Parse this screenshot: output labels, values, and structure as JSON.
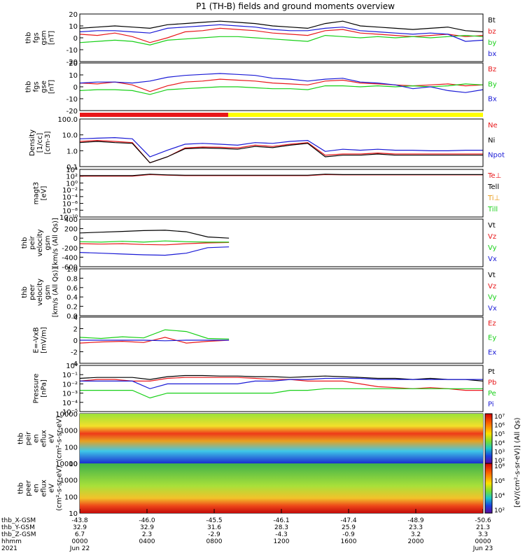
{
  "title": "P1 (TH-B) fields and ground moments overview",
  "chart_data": [
    {
      "type": "line",
      "ylabel": [
        "thb",
        "fgs",
        "gsm",
        "[nT]"
      ],
      "ylim": [
        -20,
        20
      ],
      "yticks": [
        "20",
        "10",
        "0",
        "-10",
        "-20"
      ],
      "series": [
        {
          "name": "Bt",
          "color": "#000000",
          "values": [
            8,
            9,
            10,
            9,
            8,
            11,
            12,
            13,
            14,
            13,
            12,
            10,
            9,
            8,
            12,
            14,
            10,
            9,
            8,
            7,
            8,
            9,
            6,
            5
          ]
        },
        {
          "name": "bz",
          "color": "#e8171a",
          "values": [
            3,
            2,
            4,
            1,
            -4,
            0,
            5,
            6,
            8,
            7,
            6,
            4,
            3,
            2,
            6,
            7,
            4,
            3,
            2,
            1,
            2,
            3,
            1,
            2
          ]
        },
        {
          "name": "by",
          "color": "#18d018",
          "values": [
            -4,
            -3,
            -2,
            -3,
            -6,
            -2,
            -1,
            0,
            1,
            1,
            0,
            -1,
            -2,
            -3,
            2,
            1,
            0,
            1,
            0,
            1,
            0,
            1,
            2,
            1
          ]
        },
        {
          "name": "bx",
          "color": "#1a1ad6",
          "values": [
            5,
            6,
            6,
            5,
            4,
            8,
            9,
            10,
            11,
            10,
            9,
            7,
            6,
            6,
            8,
            9,
            6,
            5,
            4,
            3,
            4,
            3,
            -3,
            -2
          ]
        }
      ]
    },
    {
      "type": "line",
      "ylabel": [
        "thb",
        "fgs",
        "gse",
        "[nT]"
      ],
      "ylim": [
        -25,
        25
      ],
      "yticks": [
        "20",
        "10",
        "0",
        "-10",
        "-20"
      ],
      "series": [
        {
          "name": "Bz",
          "color": "#e8171a",
          "values": [
            4,
            3,
            5,
            2,
            -5,
            1,
            5,
            6,
            8,
            7,
            6,
            4,
            3,
            2,
            6,
            7,
            4,
            3,
            2,
            1,
            2,
            3,
            1,
            2
          ]
        },
        {
          "name": "By",
          "color": "#18d018",
          "values": [
            -4,
            -3,
            -3,
            -4,
            -8,
            -3,
            -2,
            -1,
            0,
            0,
            -1,
            -2,
            -2,
            -3,
            1,
            1,
            0,
            1,
            0,
            1,
            0,
            1,
            3,
            2
          ]
        },
        {
          "name": "Bx",
          "color": "#1a1ad6",
          "values": [
            4,
            5,
            5,
            4,
            6,
            10,
            12,
            13,
            14,
            13,
            12,
            9,
            8,
            6,
            8,
            9,
            5,
            4,
            2,
            -2,
            0,
            -4,
            -6,
            -3
          ]
        }
      ]
    },
    {
      "type": "line",
      "ylabel": [
        "Density",
        "[1/cc]",
        "[cm-3]"
      ],
      "yscale": "log",
      "ylim": [
        0.05,
        300
      ],
      "yticks": [
        "100.0",
        "10.0",
        "1.0",
        "0.1"
      ],
      "series": [
        {
          "name": "Ne",
          "color": "#e8171a",
          "values": [
            5,
            6,
            5,
            4,
            0.1,
            0.3,
            1.5,
            1.8,
            1.7,
            1.5,
            2.5,
            2.0,
            3.0,
            4.0,
            0.4,
            0.5,
            0.5,
            0.6,
            0.5,
            0.5,
            0.5,
            0.5,
            0.5,
            0.5
          ]
        },
        {
          "name": "Ni",
          "color": "#000000",
          "values": [
            4,
            5,
            4,
            3.5,
            0.1,
            0.3,
            1.3,
            1.5,
            1.4,
            1.2,
            2.0,
            1.6,
            2.5,
            3.5,
            0.3,
            0.4,
            0.4,
            0.5,
            0.4,
            0.4,
            0.4,
            0.4,
            0.4,
            0.4
          ]
        },
        {
          "name": "Npot",
          "color": "#1a1ad6",
          "values": [
            8,
            9,
            10,
            8,
            0.3,
            1.0,
            3.0,
            3.5,
            3.0,
            2.5,
            4.0,
            3.5,
            5.0,
            6.0,
            0.8,
            1.2,
            1.0,
            1.2,
            1.0,
            1.0,
            0.9,
            0.9,
            1.0,
            1.0
          ]
        }
      ]
    },
    {
      "type": "line",
      "ylabel": [
        "magt3",
        "[eV]"
      ],
      "yscale": "log",
      "ylim": [
        1e-10,
        10000.0
      ],
      "yticks": [
        "10⁴",
        "10²",
        "10⁰",
        "10⁻²",
        "10⁻⁴",
        "10⁻⁶",
        "10⁻⁸",
        "10⁻¹⁰"
      ],
      "series": [
        {
          "name": "Te⊥",
          "color": "#e8171a",
          "values": [
            100,
            100,
            100,
            100,
            300,
            200,
            150,
            150,
            150,
            150,
            150,
            150,
            150,
            150,
            300,
            250,
            250,
            250,
            250,
            250,
            250,
            250,
            250,
            250
          ]
        },
        {
          "name": "Tell",
          "color": "#000000",
          "values": [
            150,
            150,
            150,
            150,
            400,
            250,
            200,
            200,
            200,
            200,
            200,
            200,
            200,
            200,
            400,
            300,
            300,
            300,
            300,
            300,
            300,
            300,
            300,
            300
          ]
        },
        {
          "name": "Ti⊥",
          "color": "#e89a18",
          "values": []
        },
        {
          "name": "Till",
          "color": "#18d018",
          "values": []
        }
      ]
    },
    {
      "type": "line",
      "ylabel": [
        "thb",
        "peir",
        "velocity",
        "gsm",
        "[km/s (All Qs)]"
      ],
      "ylim": [
        -600,
        600
      ],
      "yticks": [
        "400",
        "200",
        "0",
        "-200",
        "-400",
        "-600"
      ],
      "series": [
        {
          "name": "Vt",
          "color": "#000000",
          "values": [
            250,
            270,
            290,
            310,
            320,
            280,
            150,
            120
          ]
        },
        {
          "name": "Vz",
          "color": "#e8171a",
          "values": [
            -20,
            -30,
            -20,
            -40,
            -50,
            -20,
            0,
            10
          ]
        },
        {
          "name": "Vy",
          "color": "#18d018",
          "values": [
            30,
            20,
            40,
            20,
            50,
            30,
            20,
            20
          ]
        },
        {
          "name": "Vx",
          "color": "#1a1ad6",
          "values": [
            -240,
            -260,
            -280,
            -300,
            -310,
            -260,
            -120,
            -100
          ]
        }
      ]
    },
    {
      "type": "line",
      "ylabel": [
        "thb",
        "peer",
        "velocity",
        "gsm",
        "[km/s (All Qs)]"
      ],
      "ylim": [
        0,
        1
      ],
      "yticks": [
        "1.0",
        "0.8",
        "0.6",
        "0.4",
        "0.2",
        "0.0"
      ],
      "series": [
        {
          "name": "Vt",
          "color": "#000000",
          "values": []
        },
        {
          "name": "Vz",
          "color": "#e8171a",
          "values": []
        },
        {
          "name": "Vy",
          "color": "#18d018",
          "values": []
        },
        {
          "name": "Vx",
          "color": "#1a1ad6",
          "values": []
        }
      ]
    },
    {
      "type": "line",
      "ylabel": [
        "E=-VxB",
        "[mV/m]"
      ],
      "ylim": [
        -4,
        4
      ],
      "yticks": [
        "4",
        "2",
        "0",
        "-2",
        "-4"
      ],
      "series": [
        {
          "name": "Ez",
          "color": "#e8171a",
          "values": [
            -0.5,
            -0.3,
            -0.2,
            -0.4,
            0.5,
            -0.5,
            -0.2,
            0.0
          ]
        },
        {
          "name": "Ey",
          "color": "#18d018",
          "values": [
            0.5,
            0.3,
            0.6,
            0.4,
            1.8,
            1.5,
            0.3,
            0.2
          ]
        },
        {
          "name": "Ex",
          "color": "#1a1ad6",
          "values": [
            0.0,
            0.0,
            0.0,
            0.0,
            -0.1,
            0.0,
            0.0,
            0.0
          ]
        }
      ]
    },
    {
      "type": "line",
      "ylabel": [
        "Pressure",
        "[nPa]"
      ],
      "yscale": "log",
      "ylim": [
        1e-05,
        1
      ],
      "yticks": [
        "10⁰",
        "10⁻¹",
        "10⁻²",
        "10⁻³",
        "10⁻⁴",
        "10⁻⁵"
      ],
      "series": [
        {
          "name": "Pt",
          "color": "#000000",
          "values": [
            0.04,
            0.05,
            0.05,
            0.05,
            0.03,
            0.06,
            0.08,
            0.08,
            0.07,
            0.07,
            0.06,
            0.06,
            0.05,
            0.06,
            0.07,
            0.06,
            0.05,
            0.04,
            0.04,
            0.03,
            0.04,
            0.03,
            0.03,
            0.02
          ]
        },
        {
          "name": "Pb",
          "color": "#e8171a",
          "values": [
            0.02,
            0.03,
            0.03,
            0.02,
            0.02,
            0.04,
            0.05,
            0.05,
            0.05,
            0.05,
            0.04,
            0.03,
            0.03,
            0.02,
            0.02,
            0.02,
            0.01,
            0.005,
            0.004,
            0.003,
            0.004,
            0.003,
            0.002,
            0.002
          ]
        },
        {
          "name": "Pe",
          "color": "#18d018",
          "values": [
            0.002,
            0.002,
            0.002,
            0.002,
            0.0003,
            0.001,
            0.001,
            0.001,
            0.001,
            0.001,
            0.001,
            0.001,
            0.002,
            0.002,
            0.003,
            0.003,
            0.003,
            0.003,
            0.003,
            0.003,
            0.003,
            0.003,
            0.003,
            0.003
          ]
        },
        {
          "name": "Pi",
          "color": "#1a1ad6",
          "values": [
            0.02,
            0.02,
            0.02,
            0.02,
            0.003,
            0.01,
            0.01,
            0.01,
            0.01,
            0.01,
            0.02,
            0.02,
            0.03,
            0.03,
            0.04,
            0.04,
            0.04,
            0.03,
            0.03,
            0.03,
            0.03,
            0.03,
            0.03,
            0.03
          ]
        }
      ]
    },
    {
      "type": "heatmap",
      "ylabel": [
        "thb",
        "peir",
        "en",
        "eflux",
        "eV",
        "(cm²-s-sr-eV)"
      ],
      "yscale": "log",
      "yticks": [
        "10000",
        "1000",
        "100",
        "10"
      ],
      "colorbar_ticks": [
        "10⁷",
        "10⁶",
        "10⁵",
        "10⁴",
        "10³",
        "10²"
      ]
    },
    {
      "type": "heatmap",
      "ylabel": [
        "thb",
        "peer",
        "en",
        "eflux",
        "eV",
        "(cm²-s-sr-eV)"
      ],
      "yscale": "log",
      "yticks": [
        "10000",
        "1000",
        "100",
        "10"
      ],
      "colorbar_ticks": [
        "10⁸",
        "10⁶",
        "10⁴",
        "10²"
      ]
    }
  ],
  "colorbar_label": "[eV/(cm²-s-sr-eV)] (All Qs)",
  "status_bar": {
    "segments": [
      {
        "color": "#e8171a",
        "from": 0.0,
        "to": 0.368
      },
      {
        "color": "#ffff00",
        "from": 0.368,
        "to": 1.0
      }
    ]
  },
  "x_axis": {
    "rows": [
      {
        "name": "thb_X-GSM",
        "values": [
          "-43.8",
          "-46.0",
          "-45.5",
          "-46.1",
          "-47.4",
          "-48.9",
          "-50.6"
        ]
      },
      {
        "name": "thb_Y-GSM",
        "values": [
          "32.9",
          "32.9",
          "31.6",
          "28.3",
          "25.9",
          "23.3",
          "21.3"
        ]
      },
      {
        "name": "thb_Z-GSM",
        "values": [
          "6.7",
          "2.3",
          "-2.9",
          "-4.3",
          "-0.9",
          "3.2",
          "3.3"
        ]
      },
      {
        "name": "hhmm",
        "values": [
          "0000",
          "0400",
          "0800",
          "1200",
          "1600",
          "2000",
          "0000"
        ]
      },
      {
        "name": "2021",
        "values": [
          "Jun 22",
          "",
          "",
          "",
          "",
          "",
          "Jun 23"
        ]
      }
    ]
  }
}
